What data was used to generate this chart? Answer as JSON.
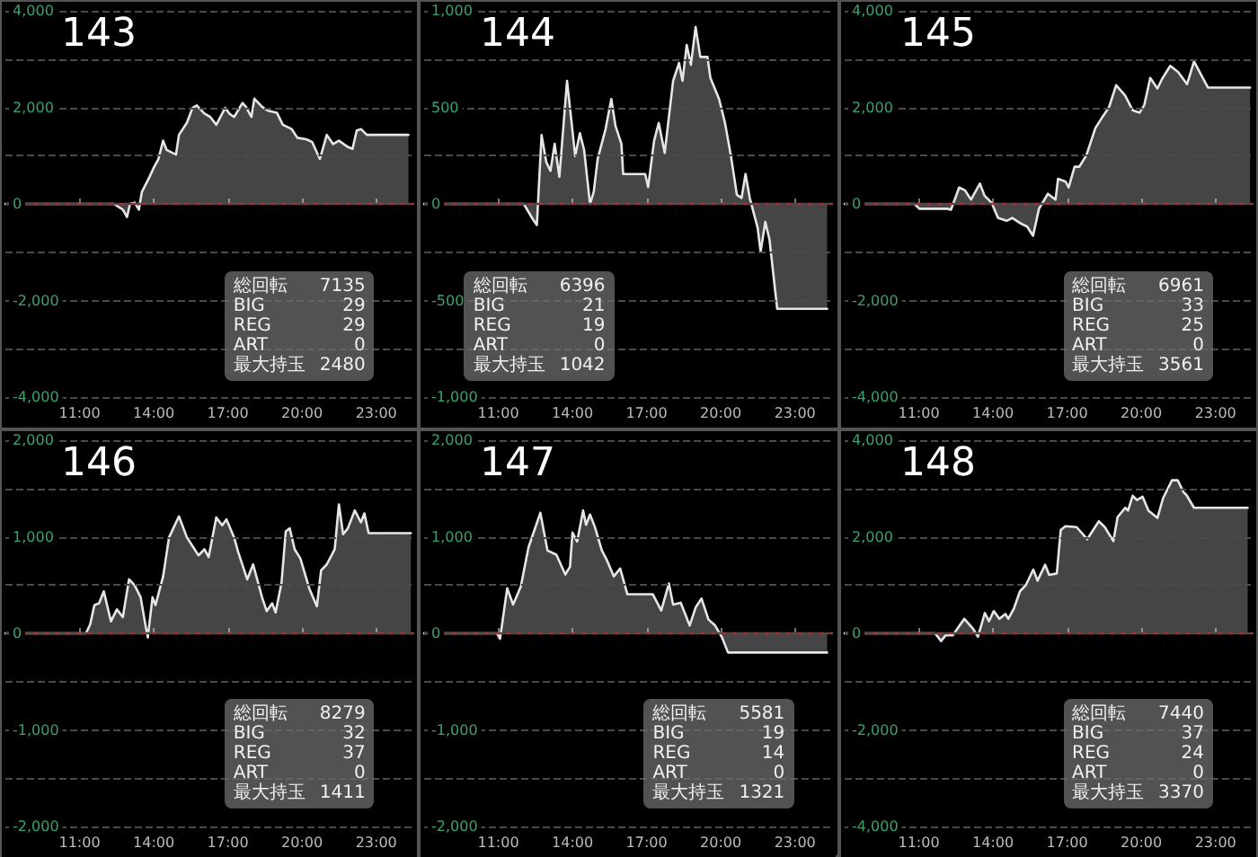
{
  "chart_data": [
    {
      "type": "area",
      "title": "143",
      "color": "#e6e6e6",
      "grid": "y",
      "xlim": [
        8,
        24.5
      ],
      "xticks": [
        {
          "value": 11,
          "label": "11:00"
        },
        {
          "value": 14,
          "label": "14:00"
        },
        {
          "value": 17,
          "label": "17:00"
        },
        {
          "value": 20,
          "label": "20:00"
        },
        {
          "value": 23,
          "label": "23:00"
        }
      ],
      "ylim": [
        -4000,
        4000
      ],
      "yticks": [
        {
          "value": -4000,
          "label": "-4,000"
        },
        {
          "value": -3000,
          "label": null
        },
        {
          "value": -2000,
          "label": "-2,000"
        },
        {
          "value": -1000,
          "label": null
        },
        {
          "value": 0,
          "label": "0"
        },
        {
          "value": 1000,
          "label": null
        },
        {
          "value": 2000,
          "label": "2,000"
        },
        {
          "value": 3000,
          "label": null
        },
        {
          "value": 4000,
          "label": "4,000"
        }
      ],
      "ref_lines": [
        {
          "axis": "y",
          "value": 0,
          "color": "#a83232"
        }
      ],
      "annotations": [
        "総回転 7135",
        "BIG 29",
        "REG 29",
        "ART 0",
        "最大持玉 2480"
      ],
      "x": [
        8,
        12.39,
        12.75,
        12.92,
        13.04,
        13.23,
        13.4,
        13.52,
        13.83,
        14,
        14.19,
        14.38,
        14.52,
        14.9,
        15.02,
        15.34,
        15.57,
        15.74,
        16.05,
        16.29,
        16.53,
        16.89,
        17.06,
        17.25,
        17.59,
        17.73,
        17.95,
        18.07,
        18.38,
        18.62,
        18.98,
        19.22,
        19.58,
        19.81,
        20.17,
        20.41,
        20.72,
        21,
        21.25,
        21.49,
        21.85,
        22.04,
        22.21,
        22.38,
        22.62,
        24.3
      ],
      "values": [
        0,
        0,
        -120,
        -270,
        0,
        25,
        -120,
        250,
        560,
        750,
        930,
        1310,
        1120,
        1020,
        1430,
        1680,
        1990,
        2040,
        1870,
        1800,
        1640,
        1990,
        1870,
        1800,
        2090,
        2010,
        1800,
        2180,
        2010,
        1930,
        1890,
        1640,
        1550,
        1370,
        1340,
        1280,
        930,
        1430,
        1240,
        1310,
        1180,
        1140,
        1520,
        1550,
        1430,
        1430
      ]
    },
    {
      "type": "area",
      "title": "144",
      "color": "#e6e6e6",
      "grid": "y",
      "xlim": [
        8,
        24.5
      ],
      "xticks": [
        {
          "value": 11,
          "label": "11:00"
        },
        {
          "value": 14,
          "label": "14:00"
        },
        {
          "value": 17,
          "label": "17:00"
        },
        {
          "value": 20,
          "label": "20:00"
        },
        {
          "value": 23,
          "label": "23:00"
        }
      ],
      "ylim": [
        -1000,
        1000
      ],
      "yticks": [
        {
          "value": -1000,
          "label": "-1,000"
        },
        {
          "value": -750,
          "label": null
        },
        {
          "value": -500,
          "label": "-500"
        },
        {
          "value": -250,
          "label": null
        },
        {
          "value": 0,
          "label": "0"
        },
        {
          "value": 250,
          "label": null
        },
        {
          "value": 500,
          "label": "500"
        },
        {
          "value": 750,
          "label": null
        },
        {
          "value": 1000,
          "label": "1,000"
        }
      ],
      "ref_lines": [
        {
          "axis": "y",
          "value": 0,
          "color": "#a83232"
        }
      ],
      "annotations": [
        "総回転 6396",
        "BIG 21",
        "REG 19",
        "ART 0",
        "最大持玉 1042"
      ],
      "x": [
        8,
        12.03,
        12.39,
        12.56,
        12.75,
        12.94,
        13.11,
        13.28,
        13.47,
        13.78,
        13.9,
        14.11,
        14.3,
        14.47,
        14.71,
        14.86,
        15.02,
        15.34,
        15.57,
        15.74,
        15.98,
        16.05,
        16.94,
        17.06,
        17.3,
        17.49,
        17.73,
        18.07,
        18.31,
        18.45,
        18.62,
        18.79,
        18.98,
        19.17,
        19.46,
        19.58,
        19.93,
        20.17,
        20.41,
        20.65,
        20.84,
        21,
        21.17,
        21.49,
        21.61,
        21.8,
        21.97,
        22.28,
        24.3
      ],
      "values": [
        0,
        0,
        -78,
        -109,
        357,
        217,
        171,
        311,
        140,
        637,
        497,
        248,
        366,
        280,
        0,
        62,
        233,
        388,
        543,
        404,
        311,
        155,
        155,
        87,
        326,
        419,
        264,
        637,
        730,
        637,
        823,
        720,
        916,
        761,
        761,
        652,
        543,
        419,
        248,
        47,
        31,
        155,
        31,
        -124,
        -248,
        -93,
        -186,
        -543,
        -543
      ]
    },
    {
      "type": "area",
      "title": "145",
      "color": "#e6e6e6",
      "grid": "y",
      "xlim": [
        8,
        24.5
      ],
      "xticks": [
        {
          "value": 11,
          "label": "11:00"
        },
        {
          "value": 14,
          "label": "14:00"
        },
        {
          "value": 17,
          "label": "17:00"
        },
        {
          "value": 20,
          "label": "20:00"
        },
        {
          "value": 23,
          "label": "23:00"
        }
      ],
      "ylim": [
        -4000,
        4000
      ],
      "yticks": [
        {
          "value": -4000,
          "label": "-4,000"
        },
        {
          "value": -3000,
          "label": null
        },
        {
          "value": -2000,
          "label": "-2,000"
        },
        {
          "value": -1000,
          "label": null
        },
        {
          "value": 0,
          "label": "0"
        },
        {
          "value": 1000,
          "label": null
        },
        {
          "value": 2000,
          "label": "2,000"
        },
        {
          "value": 3000,
          "label": null
        },
        {
          "value": 4000,
          "label": "4,000"
        }
      ],
      "ref_lines": [
        {
          "axis": "y",
          "value": 0,
          "color": "#a83232"
        }
      ],
      "annotations": [
        "総回転 6961",
        "BIG 33",
        "REG 25",
        "ART 0",
        "最大持玉 3561"
      ],
      "x": [
        8,
        10.83,
        11.02,
        12.15,
        12.3,
        12.63,
        12.87,
        13.11,
        13.47,
        13.66,
        13.95,
        14.2,
        14.55,
        14.78,
        15.14,
        15.38,
        15.62,
        15.86,
        16.22,
        16.53,
        16.63,
        16.94,
        17.06,
        17.3,
        17.49,
        17.78,
        18.14,
        18.45,
        18.69,
        18.98,
        19.34,
        19.65,
        19.93,
        20.12,
        20.36,
        20.65,
        20.84,
        21.17,
        21.49,
        21.85,
        22.13,
        22.69,
        24.4
      ],
      "values": [
        0,
        0,
        -100,
        -100,
        -120,
        340,
        280,
        90,
        420,
        170,
        20,
        -290,
        -350,
        -290,
        -410,
        -470,
        -660,
        -100,
        210,
        90,
        520,
        460,
        340,
        770,
        770,
        1010,
        1570,
        1820,
        2000,
        2460,
        2250,
        1940,
        1890,
        2050,
        2610,
        2390,
        2590,
        2860,
        2730,
        2480,
        2950,
        2410,
        2410
      ]
    },
    {
      "type": "area",
      "title": "146",
      "color": "#e6e6e6",
      "grid": "y",
      "xlim": [
        8,
        24.5
      ],
      "xticks": [
        {
          "value": 11,
          "label": "11:00"
        },
        {
          "value": 14,
          "label": "14:00"
        },
        {
          "value": 17,
          "label": "17:00"
        },
        {
          "value": 20,
          "label": "20:00"
        },
        {
          "value": 23,
          "label": "23:00"
        }
      ],
      "ylim": [
        -2000,
        2000
      ],
      "yticks": [
        {
          "value": -2000,
          "label": "-2,000"
        },
        {
          "value": -1500,
          "label": null
        },
        {
          "value": -1000,
          "label": "-1,000"
        },
        {
          "value": -500,
          "label": null
        },
        {
          "value": 0,
          "label": "0"
        },
        {
          "value": 500,
          "label": null
        },
        {
          "value": 1000,
          "label": "1,000"
        },
        {
          "value": 1500,
          "label": null
        },
        {
          "value": 2000,
          "label": "2,000"
        }
      ],
      "ref_lines": [
        {
          "axis": "y",
          "value": 0,
          "color": "#a83232"
        }
      ],
      "annotations": [
        "総回転 8279",
        "BIG 32",
        "REG 37",
        "ART 0",
        "最大持玉 1411"
      ],
      "x": [
        8,
        11.26,
        11.43,
        11.6,
        11.79,
        11.98,
        12.27,
        12.51,
        12.75,
        13,
        13.23,
        13.47,
        13.66,
        13.76,
        13.95,
        14.07,
        14.38,
        14.62,
        15.02,
        15.34,
        15.81,
        16.05,
        16.22,
        16.53,
        16.77,
        16.94,
        17.25,
        17.42,
        17.78,
        18.02,
        18.38,
        18.57,
        18.79,
        18.93,
        19.17,
        19.34,
        19.5,
        19.7,
        19.93,
        20.29,
        20.6,
        20.77,
        21,
        21.32,
        21.49,
        21.66,
        21.85,
        22.13,
        22.38,
        22.52,
        22.69,
        24.4
      ],
      "values": [
        0,
        0,
        93,
        292,
        311,
        435,
        124,
        248,
        168,
        559,
        497,
        373,
        93,
        -43,
        373,
        292,
        590,
        994,
        1211,
        994,
        807,
        870,
        789,
        1199,
        1118,
        1180,
        994,
        839,
        559,
        714,
        373,
        230,
        311,
        217,
        528,
        1056,
        1087,
        870,
        776,
        466,
        280,
        652,
        714,
        870,
        1335,
        1025,
        1087,
        1273,
        1149,
        1242,
        1037,
        1037
      ]
    },
    {
      "type": "area",
      "title": "147",
      "color": "#e6e6e6",
      "grid": "y",
      "xlim": [
        8,
        24.5
      ],
      "xticks": [
        {
          "value": 11,
          "label": "11:00"
        },
        {
          "value": 14,
          "label": "14:00"
        },
        {
          "value": 17,
          "label": "17:00"
        },
        {
          "value": 20,
          "label": "20:00"
        },
        {
          "value": 23,
          "label": "23:00"
        }
      ],
      "ylim": [
        -2000,
        2000
      ],
      "yticks": [
        {
          "value": -2000,
          "label": "-2,000"
        },
        {
          "value": -1500,
          "label": null
        },
        {
          "value": -1000,
          "label": "-1,000"
        },
        {
          "value": -500,
          "label": null
        },
        {
          "value": 0,
          "label": "0"
        },
        {
          "value": 500,
          "label": null
        },
        {
          "value": 1000,
          "label": "1,000"
        },
        {
          "value": 1500,
          "label": null
        },
        {
          "value": 2000,
          "label": "2,000"
        }
      ],
      "ref_lines": [
        {
          "axis": "y",
          "value": 0,
          "color": "#a83232"
        }
      ],
      "annotations": [
        "総回転 5581",
        "BIG 19",
        "REG 14",
        "ART 0",
        "最大持玉 1321"
      ],
      "x": [
        8,
        10.95,
        11.07,
        11.36,
        11.6,
        11.91,
        12.22,
        12.7,
        12.99,
        13.35,
        13.71,
        13.9,
        14,
        14.19,
        14.43,
        14.55,
        14.71,
        14.9,
        15.19,
        15.38,
        15.67,
        15.93,
        16.22,
        17.25,
        17.59,
        17.9,
        18.07,
        18.38,
        18.74,
        18.98,
        19.22,
        19.5,
        19.77,
        20.05,
        20.29,
        24.3
      ],
      "values": [
        0,
        0,
        -56,
        466,
        298,
        484,
        888,
        1248,
        857,
        814,
        609,
        689,
        1043,
        950,
        1273,
        1124,
        1230,
        1106,
        857,
        764,
        590,
        671,
        404,
        404,
        236,
        516,
        298,
        317,
        81,
        267,
        360,
        143,
        81,
        -43,
        -199,
        -199
      ]
    },
    {
      "type": "area",
      "title": "148",
      "color": "#e6e6e6",
      "grid": "y",
      "xlim": [
        8,
        24.5
      ],
      "xticks": [
        {
          "value": 11,
          "label": "11:00"
        },
        {
          "value": 14,
          "label": "14:00"
        },
        {
          "value": 17,
          "label": "17:00"
        },
        {
          "value": 20,
          "label": "20:00"
        },
        {
          "value": 23,
          "label": "23:00"
        }
      ],
      "ylim": [
        -4000,
        4000
      ],
      "yticks": [
        {
          "value": -4000,
          "label": "-4,000"
        },
        {
          "value": -3000,
          "label": null
        },
        {
          "value": -2000,
          "label": "-2,000"
        },
        {
          "value": -1000,
          "label": null
        },
        {
          "value": 0,
          "label": "0"
        },
        {
          "value": 1000,
          "label": null
        },
        {
          "value": 2000,
          "label": "2,000"
        },
        {
          "value": 3000,
          "label": null
        },
        {
          "value": 4000,
          "label": "4,000"
        }
      ],
      "ref_lines": [
        {
          "axis": "y",
          "value": 0,
          "color": "#a83232"
        }
      ],
      "annotations": [
        "総回転 7440",
        "BIG 37",
        "REG 24",
        "ART 0",
        "最大持玉 3370"
      ],
      "x": [
        8,
        11.66,
        11.9,
        12.09,
        12.37,
        12.84,
        13.2,
        13.39,
        13.67,
        13.84,
        14.03,
        14.26,
        14.5,
        14.62,
        14.85,
        15.09,
        15.33,
        15.63,
        15.8,
        16.11,
        16.27,
        16.58,
        16.74,
        16.93,
        17.38,
        17.81,
        18.28,
        18.52,
        18.87,
        19.04,
        19.35,
        19.46,
        19.65,
        19.82,
        20.05,
        20.29,
        20.65,
        20.88,
        21.24,
        21.47,
        21.71,
        21.83,
        22.13,
        24.3
      ],
      "values": [
        0,
        0,
        -160,
        -40,
        -40,
        300,
        90,
        -70,
        420,
        250,
        460,
        300,
        400,
        300,
        520,
        870,
        1000,
        1320,
        1090,
        1420,
        1210,
        1240,
        2140,
        2220,
        2200,
        1950,
        2320,
        2200,
        1910,
        2410,
        2600,
        2540,
        2850,
        2760,
        2830,
        2540,
        2390,
        2800,
        3170,
        3170,
        2920,
        2860,
        2600,
        2600
      ]
    }
  ]
}
